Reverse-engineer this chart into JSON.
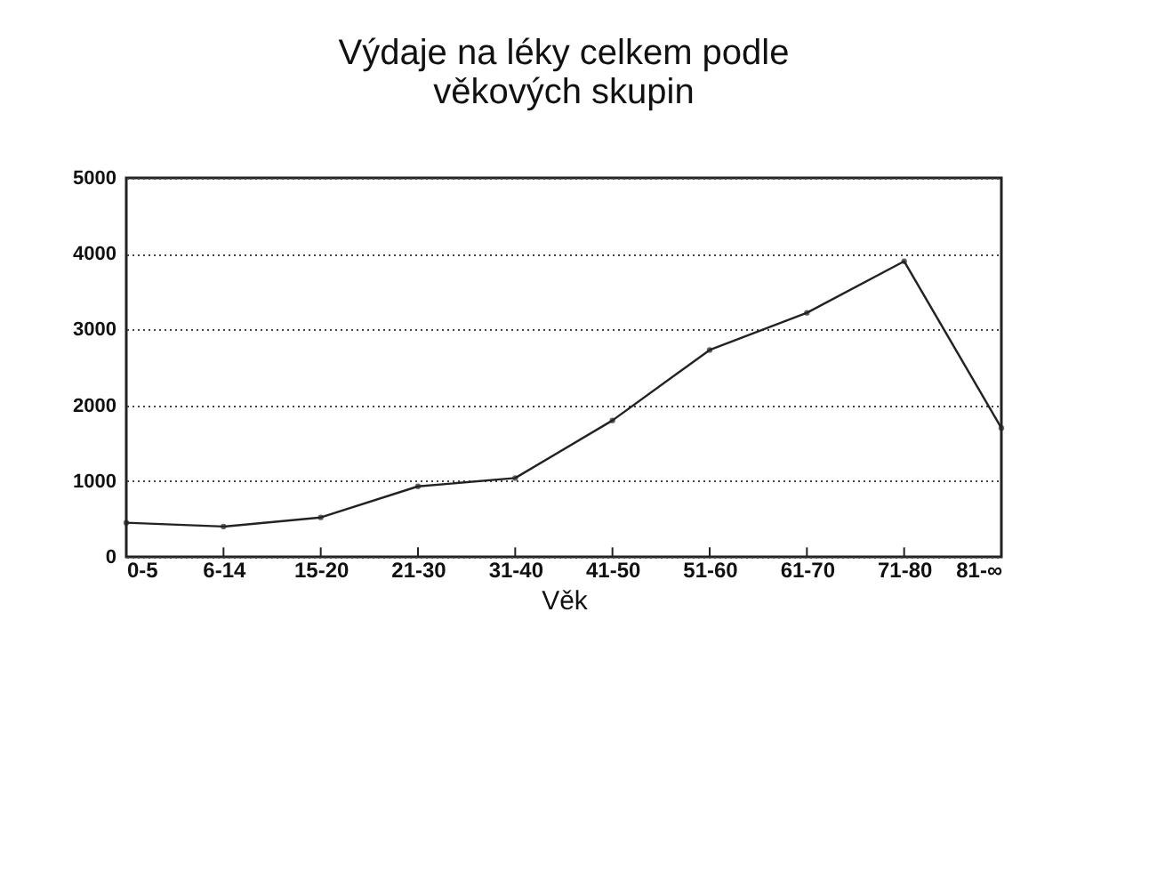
{
  "chart_data": {
    "type": "line",
    "title": [
      "Výdaje na léky celkem podle",
      "věkových skupin"
    ],
    "xlabel": "Věk",
    "categories": [
      "0-5",
      "6-14",
      "15-20",
      "21-30",
      "31-40",
      "41-50",
      "51-60",
      "61-70",
      "71-80",
      "81-∞"
    ],
    "series": [
      {
        "color": "#222222",
        "values": [
          450,
          400,
          520,
          930,
          1040,
          1800,
          2730,
          3220,
          3900,
          1700
        ]
      }
    ],
    "ylim": [
      0,
      5000
    ],
    "yticks": [
      0,
      1000,
      2000,
      3000,
      4000,
      5000
    ],
    "grid": "y",
    "marker": "circle",
    "line_style": "solid"
  }
}
